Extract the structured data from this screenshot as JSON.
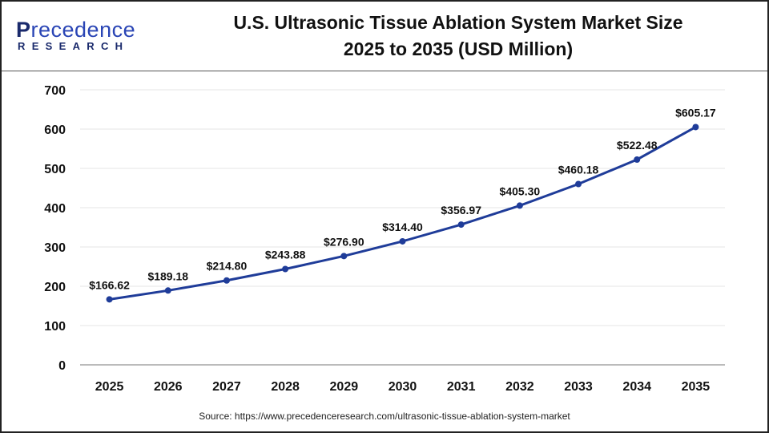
{
  "logo": {
    "text_top_first": "P",
    "text_top_rest": "recedence",
    "text_bottom": "RESEARCH"
  },
  "header": {
    "title_line1": "U.S. Ultrasonic Tissue Ablation System Market Size",
    "title_line2": "2025 to 2035 (USD Million)"
  },
  "source": "Source: https://www.precedenceresearch.com/ultrasonic-tissue-ablation-system-market",
  "chart_data": {
    "type": "line",
    "title": "U.S. Ultrasonic Tissue Ablation System Market Size 2025 to 2035 (USD Million)",
    "categories": [
      "2025",
      "2026",
      "2027",
      "2028",
      "2029",
      "2030",
      "2031",
      "2032",
      "2033",
      "2034",
      "2035"
    ],
    "values": [
      166.62,
      189.18,
      214.8,
      243.88,
      276.9,
      314.4,
      356.97,
      405.3,
      460.18,
      522.48,
      605.17
    ],
    "data_labels": [
      "$166.62",
      "$189.18",
      "$214.80",
      "$243.88",
      "$276.90",
      "$314.40",
      "$356.97",
      "$405.30",
      "$460.18",
      "$522.48",
      "$605.17"
    ],
    "yticks": [
      0,
      100,
      200,
      300,
      400,
      500,
      600,
      700
    ],
    "ylim": [
      0,
      700
    ],
    "grid": true,
    "line_color": "#1f3c99"
  }
}
